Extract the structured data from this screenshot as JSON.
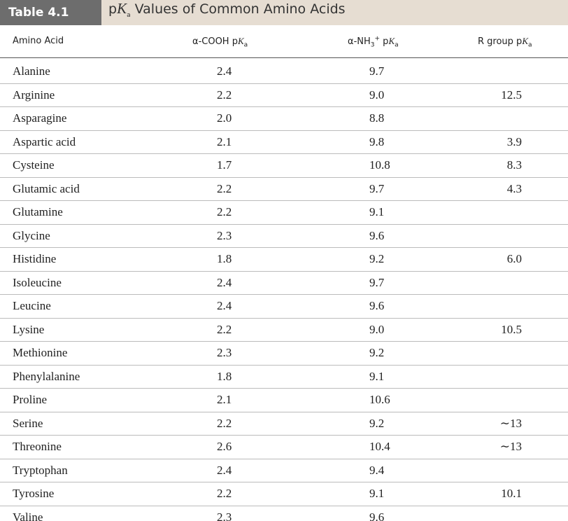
{
  "header": {
    "label": "Table 4.1",
    "title": [
      "p",
      "K",
      "a",
      " Values of Common Amino Acids"
    ]
  },
  "table": {
    "columns": [
      [
        "Amino Acid"
      ],
      [
        "α-COOH p",
        "K",
        "a"
      ],
      [
        "α-NH",
        "3",
        "+",
        " p",
        "K",
        "a"
      ],
      [
        "R group p",
        "K",
        "a"
      ]
    ],
    "rows": [
      {
        "name": "Alanine",
        "cooh": "2.4",
        "nh3": "9.7"
      },
      {
        "name": "Arginine",
        "cooh": "2.2",
        "nh3": "9.0",
        "r": "12.5"
      },
      {
        "name": "Asparagine",
        "cooh": "2.0",
        "nh3": "8.8"
      },
      {
        "name": "Aspartic acid",
        "cooh": "2.1",
        "nh3": "9.8",
        "r": "3.9"
      },
      {
        "name": "Cysteine",
        "cooh": "1.7",
        "nh3": "10.8",
        "r": "8.3"
      },
      {
        "name": "Glutamic acid",
        "cooh": "2.2",
        "nh3": "9.7",
        "r": "4.3"
      },
      {
        "name": "Glutamine",
        "cooh": "2.2",
        "nh3": "9.1"
      },
      {
        "name": "Glycine",
        "cooh": "2.3",
        "nh3": "9.6"
      },
      {
        "name": "Histidine",
        "cooh": "1.8",
        "nh3": "9.2",
        "r": "6.0"
      },
      {
        "name": "Isoleucine",
        "cooh": "2.4",
        "nh3": "9.7"
      },
      {
        "name": "Leucine",
        "cooh": "2.4",
        "nh3": "9.6"
      },
      {
        "name": "Lysine",
        "cooh": "2.2",
        "nh3": "9.0",
        "r": "10.5"
      },
      {
        "name": "Methionine",
        "cooh": "2.3",
        "nh3": "9.2"
      },
      {
        "name": "Phenylalanine",
        "cooh": "1.8",
        "nh3": "9.1"
      },
      {
        "name": "Proline",
        "cooh": "2.1",
        "nh3": "10.6"
      },
      {
        "name": "Serine",
        "cooh": "2.2",
        "nh3": "9.2",
        "r": "∼13"
      },
      {
        "name": "Threonine",
        "cooh": "2.6",
        "nh3": "10.4",
        "r": "∼13"
      },
      {
        "name": "Tryptophan",
        "cooh": "2.4",
        "nh3": "9.4"
      },
      {
        "name": "Tyrosine",
        "cooh": "2.2",
        "nh3": "9.1",
        "r": "10.1"
      },
      {
        "name": "Valine",
        "cooh": "2.3",
        "nh3": "9.6"
      }
    ]
  }
}
